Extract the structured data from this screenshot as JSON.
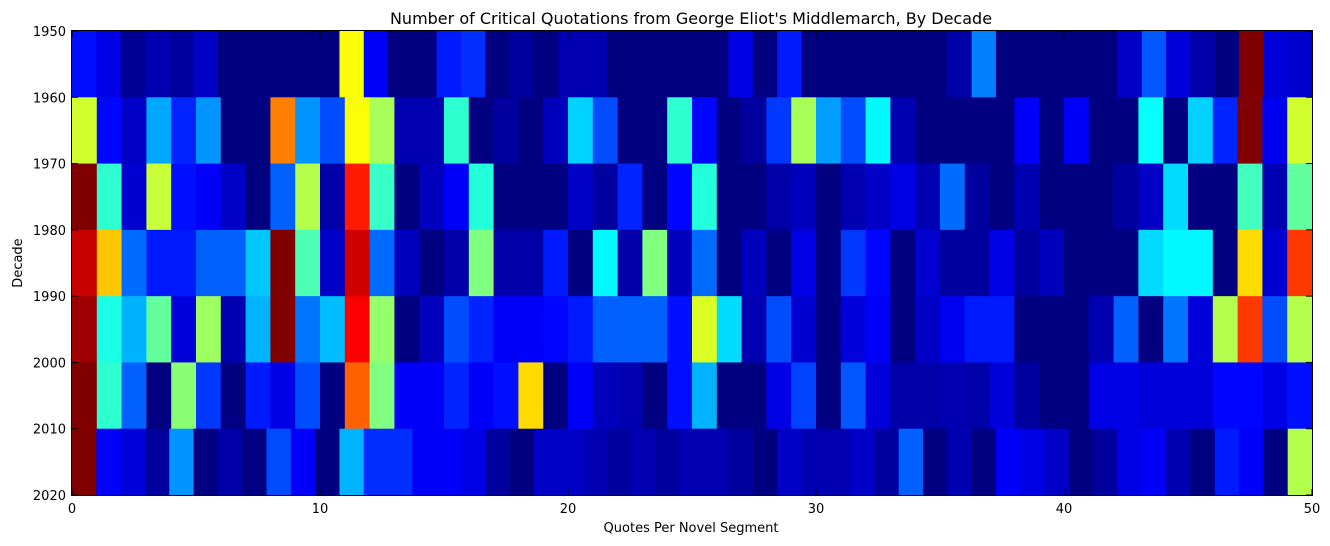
{
  "chart_data": {
    "type": "heatmap",
    "title": "Number of Critical Quotations from George Eliot's Middlemarch, By Decade",
    "xlabel": "Quotes Per Novel Segment",
    "ylabel": "Decade",
    "xlim": [
      0,
      50
    ],
    "ylim": [
      1950,
      2020
    ],
    "y_inverted": true,
    "xticks": [
      0,
      10,
      20,
      30,
      40,
      50
    ],
    "yticks": [
      1950,
      1960,
      1970,
      1980,
      1990,
      2000,
      2010,
      2020
    ],
    "colormap": "jet",
    "value_scale": [
      0,
      1
    ],
    "rows": [
      "1950",
      "1960",
      "1970",
      "1980",
      "1990",
      "2000",
      "2010"
    ],
    "grid": false,
    "values": [
      [
        0.14,
        0.1,
        0.02,
        0.05,
        0.03,
        0.07,
        0.0,
        0.0,
        0.0,
        0.0,
        0.0,
        0.62,
        0.12,
        0.0,
        0.0,
        0.15,
        0.17,
        0.0,
        0.03,
        0.0,
        0.05,
        0.05,
        0.0,
        0.0,
        0.0,
        0.0,
        0.0,
        0.1,
        0.0,
        0.15,
        0.0,
        0.0,
        0.0,
        0.0,
        0.0,
        0.0,
        0.04,
        0.25,
        0.0,
        0.0,
        0.0,
        0.0,
        0.0,
        0.07,
        0.21,
        0.09,
        0.04,
        0.0,
        1.0,
        0.09,
        0.08
      ],
      [
        0.58,
        0.13,
        0.07,
        0.29,
        0.16,
        0.27,
        0.0,
        0.0,
        0.75,
        0.27,
        0.2,
        0.62,
        0.54,
        0.05,
        0.05,
        0.42,
        0.0,
        0.03,
        0.0,
        0.06,
        0.33,
        0.2,
        0.0,
        0.0,
        0.42,
        0.13,
        0.0,
        0.03,
        0.18,
        0.54,
        0.28,
        0.2,
        0.37,
        0.05,
        0.0,
        0.0,
        0.0,
        0.0,
        0.12,
        0.0,
        0.12,
        0.0,
        0.0,
        0.38,
        0.0,
        0.33,
        0.16,
        1.0,
        0.11,
        0.58
      ],
      [
        1.0,
        0.42,
        0.08,
        0.57,
        0.14,
        0.12,
        0.07,
        0.0,
        0.22,
        0.55,
        0.04,
        0.85,
        0.43,
        0.0,
        0.06,
        0.12,
        0.41,
        0.0,
        0.0,
        0.0,
        0.07,
        0.03,
        0.16,
        0.0,
        0.13,
        0.41,
        0.0,
        0.0,
        0.04,
        0.06,
        0.0,
        0.05,
        0.07,
        0.1,
        0.05,
        0.23,
        0.03,
        0.0,
        0.05,
        0.0,
        0.0,
        0.0,
        0.03,
        0.07,
        0.34,
        0.0,
        0.0,
        0.44,
        0.05,
        0.47
      ],
      [
        0.93,
        0.68,
        0.23,
        0.15,
        0.15,
        0.22,
        0.22,
        0.32,
        1.0,
        0.45,
        0.07,
        0.92,
        0.23,
        0.06,
        0.0,
        0.04,
        0.5,
        0.04,
        0.04,
        0.15,
        0.0,
        0.37,
        0.04,
        0.5,
        0.06,
        0.23,
        0.0,
        0.06,
        0.0,
        0.1,
        0.0,
        0.18,
        0.13,
        0.0,
        0.08,
        0.03,
        0.03,
        0.1,
        0.03,
        0.06,
        0.0,
        0.0,
        0.0,
        0.34,
        0.37,
        0.37,
        0.0,
        0.66,
        0.08,
        0.82
      ],
      [
        0.97,
        0.4,
        0.3,
        0.47,
        0.09,
        0.53,
        0.05,
        0.3,
        1.0,
        0.24,
        0.31,
        0.88,
        0.52,
        0.0,
        0.06,
        0.2,
        0.16,
        0.12,
        0.12,
        0.13,
        0.15,
        0.22,
        0.22,
        0.22,
        0.14,
        0.59,
        0.34,
        0.05,
        0.2,
        0.08,
        0.0,
        0.09,
        0.12,
        0.0,
        0.07,
        0.11,
        0.15,
        0.15,
        0.0,
        0.0,
        0.0,
        0.05,
        0.22,
        0.0,
        0.24,
        0.09,
        0.55,
        0.82,
        0.2,
        0.55
      ],
      [
        1.0,
        0.42,
        0.22,
        0.0,
        0.51,
        0.18,
        0.0,
        0.15,
        0.1,
        0.2,
        0.0,
        0.78,
        0.5,
        0.12,
        0.12,
        0.16,
        0.12,
        0.14,
        0.66,
        0.0,
        0.12,
        0.06,
        0.05,
        0.0,
        0.14,
        0.3,
        0.0,
        0.0,
        0.1,
        0.19,
        0.0,
        0.21,
        0.09,
        0.04,
        0.04,
        0.05,
        0.04,
        0.09,
        0.03,
        0.0,
        0.0,
        0.1,
        0.1,
        0.09,
        0.09,
        0.09,
        0.13,
        0.13,
        0.1,
        0.14
      ],
      [
        1.0,
        0.12,
        0.09,
        0.03,
        0.27,
        0.0,
        0.04,
        0.0,
        0.2,
        0.12,
        0.0,
        0.3,
        0.17,
        0.17,
        0.12,
        0.12,
        0.1,
        0.03,
        0.0,
        0.07,
        0.07,
        0.05,
        0.03,
        0.05,
        0.03,
        0.05,
        0.05,
        0.03,
        0.0,
        0.07,
        0.05,
        0.05,
        0.07,
        0.03,
        0.22,
        0.0,
        0.05,
        0.0,
        0.12,
        0.1,
        0.07,
        0.0,
        0.03,
        0.1,
        0.12,
        0.05,
        0.0,
        0.15,
        0.12,
        0.0,
        0.55
      ]
    ]
  }
}
